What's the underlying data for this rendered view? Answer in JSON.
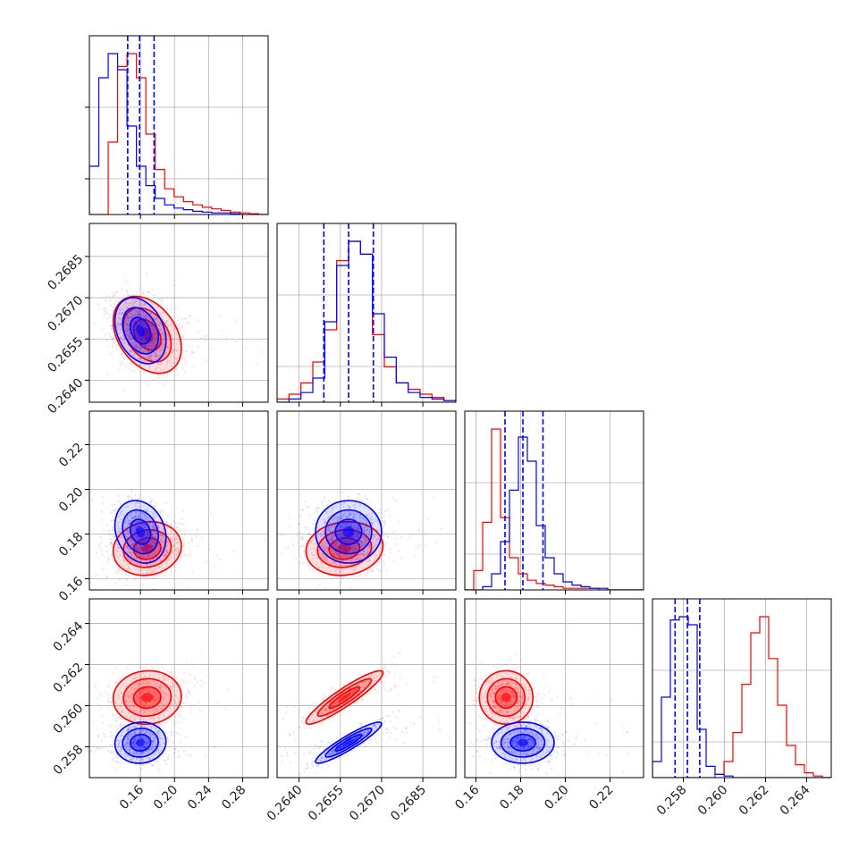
{
  "chart_data": {
    "type": "corner",
    "grid": true,
    "colors": {
      "series_a": "#ff0000",
      "series_b": "#0000ff"
    },
    "parameters": [
      {
        "id": "p1",
        "range": [
          0.1,
          0.31
        ],
        "ticks": [
          0.16,
          0.2,
          0.24,
          0.28
        ],
        "tick_labels": [
          "0.16",
          "0.20",
          "0.24",
          "0.28"
        ]
      },
      {
        "id": "p2",
        "range": [
          0.2632,
          0.2697
        ],
        "ticks": [
          0.264,
          0.2655,
          0.267,
          0.2685
        ],
        "tick_labels": [
          "0.2640",
          "0.2655",
          "0.2670",
          "0.2685"
        ]
      },
      {
        "id": "p3",
        "range": [
          0.155,
          0.235
        ],
        "ticks": [
          0.16,
          0.18,
          0.2,
          0.22
        ],
        "tick_labels": [
          "0.16",
          "0.18",
          "0.20",
          "0.22"
        ]
      },
      {
        "id": "p4",
        "range": [
          0.2565,
          0.2652
        ],
        "ticks": [
          0.258,
          0.26,
          0.262,
          0.264
        ],
        "tick_labels": [
          "0.258",
          "0.260",
          "0.262",
          "0.264"
        ]
      }
    ],
    "series": [
      {
        "color": "#ff0000",
        "mean": [
          0.168,
          0.26565,
          0.1735,
          0.2604
        ],
        "std": [
          0.02,
          0.0007,
          0.006,
          0.00065
        ],
        "corr": {
          "0-1": -0.35,
          "0-2": 0.1,
          "1-2": 0.1,
          "0-3": 0.05,
          "1-3": 0.92,
          "2-3": 0.0
        },
        "quantiles": [
          [],
          [],
          [],
          []
        ],
        "histograms": [
          [
            0,
            0,
            0.45,
            0.92,
            1.0,
            0.85,
            0.5,
            0.28,
            0.16,
            0.11,
            0.08,
            0.06,
            0.045,
            0.035,
            0.025,
            0.015,
            0.01,
            0.005,
            0
          ],
          [
            0.02,
            0.05,
            0.12,
            0.25,
            0.45,
            0.88,
            1.0,
            0.92,
            0.42,
            0.22,
            0.12,
            0.08,
            0.05,
            0.03,
            0.01
          ],
          [
            0,
            0.12,
            0.42,
            1.0,
            0.45,
            0.2,
            0.1,
            0.06,
            0.04,
            0.03,
            0.02,
            0.01,
            0.01,
            0.01,
            0.01,
            0,
            0,
            0,
            0,
            0
          ],
          [
            0,
            0,
            0,
            0,
            0,
            0,
            0,
            0.02,
            0.1,
            0.28,
            0.58,
            0.9,
            1.0,
            0.74,
            0.45,
            0.2,
            0.08,
            0.03,
            0.01,
            0
          ]
        ]
      },
      {
        "color": "#0000ff",
        "mean": [
          0.16,
          0.2658,
          0.181,
          0.2582
        ],
        "std": [
          0.015,
          0.0006,
          0.007,
          0.0005
        ],
        "corr": {
          "0-1": -0.3,
          "0-2": -0.2,
          "1-2": 0.0,
          "0-3": 0.05,
          "1-3": 0.92,
          "2-3": 0.0
        },
        "quantiles": [
          [
            0.145,
            0.159,
            0.176
          ],
          [
            0.2649,
            0.2658,
            0.2667
          ],
          [
            0.173,
            0.181,
            0.19
          ],
          [
            0.2576,
            0.2582,
            0.2588
          ]
        ],
        "histograms": [
          [
            0.3,
            0.85,
            1.0,
            0.9,
            0.55,
            0.3,
            0.18,
            0.1,
            0.06,
            0.04,
            0.03,
            0.02,
            0.015,
            0.01,
            0.01,
            0.005,
            0,
            0,
            0
          ],
          [
            0,
            0.02,
            0.06,
            0.15,
            0.5,
            0.85,
            1.0,
            0.92,
            0.55,
            0.28,
            0.12,
            0.06,
            0.03,
            0.02,
            0.01
          ],
          [
            0,
            0,
            0.02,
            0.1,
            0.3,
            0.62,
            0.95,
            0.8,
            0.4,
            0.2,
            0.1,
            0.05,
            0.03,
            0.02,
            0.01,
            0.01,
            0,
            0,
            0,
            0
          ],
          [
            0.1,
            0.5,
            0.98,
            1.0,
            0.95,
            0.3,
            0.07,
            0.02,
            0.01,
            0,
            0,
            0,
            0,
            0,
            0,
            0,
            0,
            0,
            0,
            0
          ]
        ]
      }
    ]
  }
}
